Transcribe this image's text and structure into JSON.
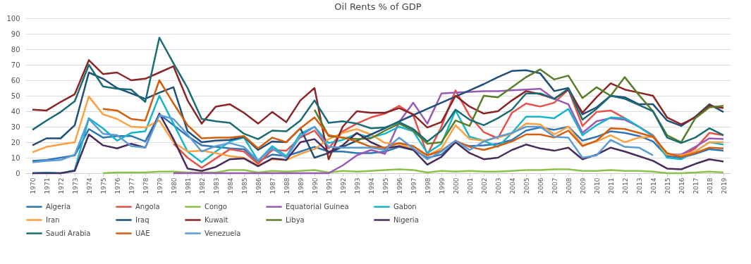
{
  "chart_data": {
    "type": "line",
    "title": "Oil Rents % of GDP",
    "categories": [
      "1970",
      "1971",
      "1972",
      "1973",
      "1974",
      "1975",
      "1976",
      "1977",
      "1978",
      "1979",
      "1980",
      "1981",
      "1982",
      "1983",
      "1984",
      "1985",
      "1986",
      "1987",
      "1988",
      "1989",
      "1990",
      "1991",
      "1992",
      "1993",
      "1994",
      "1995",
      "1996",
      "1997",
      "1998",
      "1999",
      "2000",
      "2001",
      "2002",
      "2003",
      "2004",
      "2005",
      "2006",
      "2007",
      "2008",
      "2009",
      "2010",
      "2011",
      "2012",
      "2013",
      "2014",
      "2015",
      "2016",
      "2017",
      "2018",
      "2019"
    ],
    "ylim": [
      0,
      100
    ],
    "yticks": [
      0,
      10,
      20,
      30,
      40,
      50,
      60,
      70,
      80,
      90,
      100
    ],
    "grid": "y",
    "legend": "bottom",
    "marker": "none",
    "line_style": "solid",
    "series": [
      {
        "name": "Algeria",
        "color": "#2e75b6",
        "values": [
          8,
          8.5,
          10,
          11.5,
          28.5,
          23,
          24,
          24,
          20.5,
          38,
          31,
          24,
          18,
          17,
          16,
          15.5,
          7.5,
          12,
          11,
          14,
          17,
          14,
          14,
          13,
          13,
          14,
          17,
          15,
          10,
          12,
          20,
          17.5,
          18,
          19,
          21.5,
          27.5,
          29.5,
          28,
          30,
          21,
          23.5,
          27,
          26,
          24,
          20.5,
          11,
          10,
          12.5,
          15.5,
          14.5
        ]
      },
      {
        "name": "Angola",
        "color": "#e8504a",
        "values": [
          null,
          null,
          null,
          null,
          null,
          null,
          null,
          null,
          null,
          null,
          19,
          10,
          3.5,
          9.5,
          15.5,
          14,
          6,
          15,
          14.5,
          23,
          27.5,
          16,
          27,
          32,
          36,
          38.5,
          43.5,
          37.5,
          12,
          30,
          53.5,
          37,
          26.5,
          22.5,
          39,
          45,
          43,
          45.5,
          54,
          30.5,
          39.5,
          40.5,
          35.5,
          30,
          24.5,
          12,
          11,
          16,
          26,
          24.5
        ]
      },
      {
        "name": "Congo",
        "color": "#8bc34a",
        "values": [
          null,
          null,
          null,
          null,
          null,
          0,
          0.5,
          0.5,
          0.5,
          1,
          1,
          0.5,
          0.5,
          0.5,
          2,
          2,
          0.5,
          1.5,
          1,
          1.5,
          2,
          0.5,
          1.5,
          1,
          1.5,
          2,
          2.5,
          2,
          0.5,
          1.5,
          1,
          1.5,
          1,
          1,
          1.5,
          2,
          2,
          2.5,
          2.5,
          1.5,
          1.5,
          2,
          1.5,
          1.5,
          1,
          0,
          0,
          0.5,
          1,
          0.5
        ]
      },
      {
        "name": "Equatorial Guinea",
        "color": "#9b59b6",
        "values": [
          null,
          null,
          null,
          null,
          null,
          null,
          null,
          null,
          null,
          null,
          0,
          0,
          0,
          0,
          0,
          0,
          0,
          0,
          0,
          0,
          0,
          0,
          5,
          11.5,
          15,
          12.5,
          33,
          45.5,
          32,
          51.5,
          52,
          52.5,
          53,
          53,
          53.5,
          54,
          54.5,
          48,
          44.5,
          26,
          33.5,
          35.5,
          34.5,
          30,
          24,
          12,
          12,
          17,
          22.5,
          22
        ]
      },
      {
        "name": "Gabon",
        "color": "#17b5cc",
        "values": [
          0,
          0.5,
          0,
          2,
          35.5,
          29,
          21,
          26,
          27,
          50,
          32,
          14,
          7,
          14,
          20.5,
          23,
          8,
          17.5,
          11,
          25.5,
          30,
          19.5,
          21.5,
          25.5,
          23,
          25.5,
          30,
          27,
          13,
          19,
          40.5,
          23.5,
          21,
          17,
          26,
          36.5,
          36.5,
          35.5,
          41.5,
          24.5,
          31,
          36,
          35.5,
          30,
          24,
          10,
          9,
          14,
          20,
          18.5
        ]
      },
      {
        "name": "Iran",
        "color": "#ffa040",
        "values": [
          13.5,
          17,
          18.5,
          20,
          49.5,
          38,
          35,
          30,
          29.5,
          34,
          20,
          14,
          14.5,
          13,
          11,
          10,
          5,
          9,
          8.5,
          12.5,
          15.5,
          22,
          26,
          28.5,
          25,
          19.5,
          19,
          15.5,
          11.5,
          16,
          31,
          22,
          21,
          23,
          25.5,
          32,
          31.5,
          25,
          30,
          18,
          20.5,
          24.5,
          20,
          23,
          23.5,
          12,
          11.5,
          14,
          20,
          20
        ]
      },
      {
        "name": "Iraq",
        "color": "#1f4e79",
        "values": [
          18,
          22.5,
          22.5,
          31,
          65,
          61,
          55,
          51.5,
          48,
          52,
          55.5,
          27,
          20,
          21,
          21.5,
          23.5,
          15,
          20.5,
          20,
          29,
          10,
          13,
          17,
          21,
          25,
          29,
          33.5,
          37.5,
          41.5,
          45.5,
          49.5,
          53.5,
          57.5,
          62,
          66,
          66.5,
          64.5,
          53,
          55,
          38,
          42.5,
          50,
          49,
          44.5,
          44.5,
          34,
          30.5,
          36.5,
          44.5,
          39.5
        ]
      },
      {
        "name": "Kuwait",
        "color": "#8b2525",
        "values": [
          41,
          40.5,
          46,
          51,
          73,
          64,
          65,
          60,
          61,
          65,
          69,
          47,
          32,
          43,
          44.5,
          39,
          32,
          39.5,
          33,
          47,
          55,
          9,
          30,
          40,
          39,
          39,
          42,
          38,
          29.5,
          33,
          50,
          43,
          38.5,
          40,
          47,
          53,
          51,
          48,
          54,
          39,
          49,
          58,
          54,
          52,
          50,
          36,
          31.5,
          36,
          43.5,
          42
        ]
      },
      {
        "name": "Libya",
        "color": "#5a7d2a",
        "values": [
          null,
          null,
          null,
          null,
          null,
          null,
          null,
          null,
          null,
          null,
          null,
          null,
          null,
          null,
          null,
          null,
          null,
          null,
          null,
          null,
          41,
          24,
          23,
          22,
          22.5,
          27.5,
          32,
          27.5,
          19,
          20,
          34,
          30.5,
          50,
          49,
          55.5,
          62,
          67,
          60.5,
          63,
          48.5,
          55.5,
          50,
          62,
          50.5,
          40,
          24.5,
          20,
          35.5,
          42.5,
          43.5
        ]
      },
      {
        "name": "Nigeria",
        "color": "#4a2c5c",
        "values": [
          0,
          0,
          0,
          1.5,
          25,
          18,
          16,
          19,
          16.5,
          38.5,
          22,
          3,
          1.5,
          4,
          9,
          9.5,
          4.5,
          9.5,
          8.5,
          20,
          22,
          13.5,
          18,
          26,
          20,
          16,
          17.5,
          15,
          5.5,
          10.5,
          20,
          13,
          9,
          10,
          15,
          18.5,
          16,
          14.5,
          16.5,
          9,
          12,
          16.5,
          14,
          11,
          8,
          3,
          2.5,
          6,
          9,
          7.5
        ]
      },
      {
        "name": "Saudi Arabia",
        "color": "#1a6b73",
        "values": [
          28,
          34,
          39.5,
          46.5,
          70,
          56,
          54.5,
          54,
          46,
          87.5,
          71,
          55,
          35,
          33.5,
          32.5,
          25.5,
          22,
          27.5,
          27,
          34,
          47,
          32.5,
          33.5,
          32,
          29,
          29.5,
          33,
          28.5,
          20.5,
          27.5,
          41,
          34.5,
          31,
          35.5,
          41,
          51.5,
          51.5,
          48,
          54.5,
          34.5,
          41.5,
          50,
          48,
          44,
          40,
          23,
          19.5,
          23,
          29,
          24.5
        ]
      },
      {
        "name": "UAE",
        "color": "#d35f0e",
        "values": [
          null,
          null,
          null,
          null,
          null,
          41.5,
          40.5,
          35,
          34,
          60,
          45,
          31,
          22.5,
          23,
          23,
          24,
          16,
          23,
          20,
          29,
          36,
          24.5,
          23,
          20.5,
          17,
          16.5,
          19.5,
          17.5,
          11.5,
          14.5,
          21,
          17,
          15,
          17.5,
          20.5,
          25,
          25,
          23,
          27.5,
          17.5,
          21,
          29,
          28.5,
          26,
          23.5,
          13,
          10.5,
          13,
          16.5,
          16
        ]
      },
      {
        "name": "Venezuela",
        "color": "#5b9bd5",
        "values": [
          7,
          8,
          8.5,
          12,
          35,
          25.5,
          24.5,
          17.5,
          16.5,
          37.5,
          35,
          25,
          14,
          17.5,
          19.5,
          17,
          8,
          16,
          10,
          24,
          30,
          17,
          16.5,
          16.5,
          16.5,
          15,
          23,
          16,
          9,
          14,
          21,
          15,
          20.5,
          23.5,
          26,
          30,
          30,
          23.5,
          23,
          10,
          11.5,
          21.5,
          17,
          16.5,
          11.5,
          null,
          null,
          null,
          null,
          null
        ]
      }
    ]
  }
}
